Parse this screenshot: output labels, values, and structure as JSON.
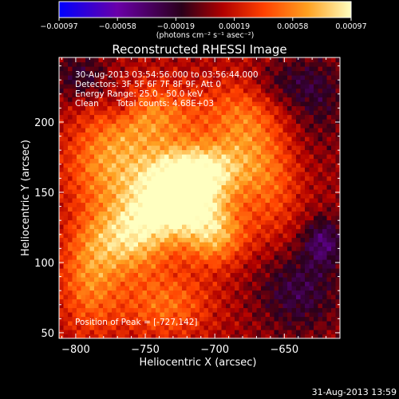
{
  "chart_data": {
    "type": "heatmap",
    "title": "Reconstructed RHESSI Image",
    "xlabel": "Heliocentric X (arcsec)",
    "ylabel": "Heliocentric Y (arcsec)",
    "xlim": [
      -812,
      -610
    ],
    "ylim": [
      46,
      246
    ],
    "xticks": [
      -800,
      -750,
      -700,
      -650
    ],
    "xtick_labels": [
      "−800",
      "−750",
      "−700",
      "−650"
    ],
    "yticks": [
      50,
      100,
      150,
      200
    ],
    "ytick_labels": [
      "50",
      "100",
      "150",
      "200"
    ],
    "colorbar": {
      "label": "(photons cm⁻² s⁻¹ asec⁻²)",
      "range": [
        -0.00097,
        0.00097
      ],
      "ticks": [
        "−0.00097",
        "−0.00058",
        "−0.00019",
        "0.00019",
        "0.00058",
        "0.00097"
      ],
      "colors": [
        "#0000ff",
        "#6a00a8",
        "#2a001a",
        "#b00000",
        "#ff4000",
        "#ffa020",
        "#ffffc0"
      ]
    },
    "annotations": {
      "time_range": "30-Aug-2013 03:54:56.000 to 03:56:44.000",
      "detectors": "Detectors: 3F 5F 6F 7F 8F 9F, Att 0",
      "energy_range": "Energy Range: 25.0 - 50.0 keV",
      "method": "Clean",
      "total_counts": "Total counts: 4.68E+03",
      "peak_position": "Position of Peak = [-727,142]"
    },
    "peak": {
      "x": -727,
      "y": 142
    },
    "emission_blobs": [
      {
        "x": -728,
        "y": 143,
        "sx": 22,
        "sy": 17,
        "a": 1.0
      },
      {
        "x": -712,
        "y": 166,
        "sx": 24,
        "sy": 14,
        "a": 0.8
      },
      {
        "x": -760,
        "y": 118,
        "sx": 20,
        "sy": 18,
        "a": 0.7
      },
      {
        "x": -700,
        "y": 120,
        "sx": 16,
        "sy": 16,
        "a": 0.6
      },
      {
        "x": -775,
        "y": 170,
        "sx": 24,
        "sy": 22,
        "a": 0.55
      },
      {
        "x": -745,
        "y": 205,
        "sx": 28,
        "sy": 18,
        "a": 0.5
      },
      {
        "x": -790,
        "y": 90,
        "sx": 16,
        "sy": 30,
        "a": 0.5
      },
      {
        "x": -735,
        "y": 70,
        "sx": 24,
        "sy": 18,
        "a": 0.45
      },
      {
        "x": -680,
        "y": 200,
        "sx": 18,
        "sy": 24,
        "a": 0.45
      },
      {
        "x": -660,
        "y": 155,
        "sx": 16,
        "sy": 28,
        "a": 0.35
      },
      {
        "x": -640,
        "y": 80,
        "sx": 20,
        "sy": 20,
        "a": -0.35
      },
      {
        "x": -622,
        "y": 115,
        "sx": 10,
        "sy": 12,
        "a": -0.45
      },
      {
        "x": -650,
        "y": 228,
        "sx": 20,
        "sy": 12,
        "a": -0.25
      },
      {
        "x": -796,
        "y": 232,
        "sx": 14,
        "sy": 12,
        "a": -0.3
      },
      {
        "x": -768,
        "y": 212,
        "sx": 10,
        "sy": 10,
        "a": -0.25
      },
      {
        "x": -625,
        "y": 215,
        "sx": 14,
        "sy": 22,
        "a": -0.2
      }
    ],
    "background_level": 0.15
  },
  "date_stamp": "31-Aug-2013 13:59"
}
